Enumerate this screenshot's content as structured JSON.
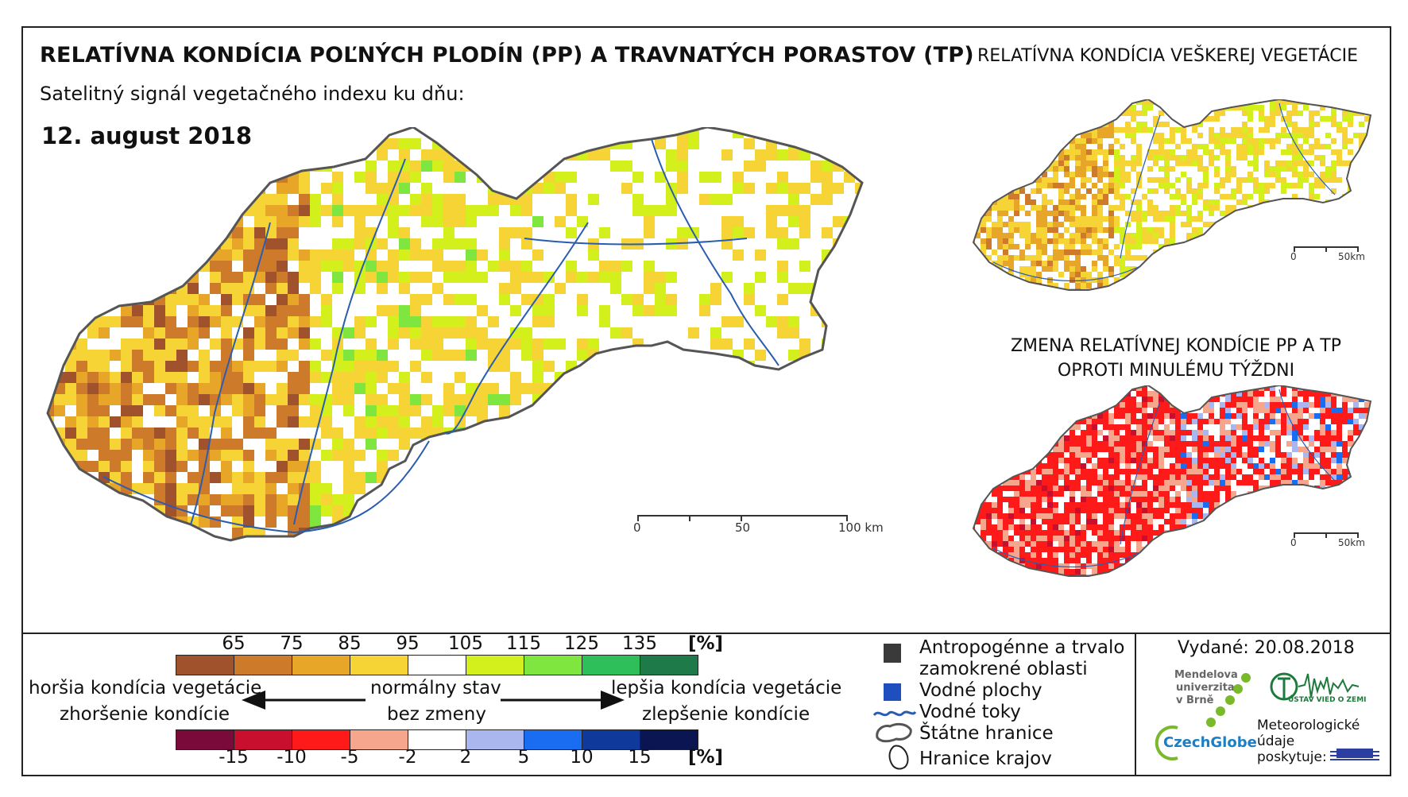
{
  "title": "RELATÍVNA KONDÍCIA POĽNÝCH PLODÍN (PP) A TRAVNATÝCH PORASTOV (TP)",
  "subtitle": "Satelitný signál vegetačného indexu ku dňu:",
  "date": "12. august 2018",
  "side_map_title": "RELATÍVNA KONDÍCIA VEŠKEREJ VEGETÁCIE",
  "change_map_title_line1": "ZMENA RELATÍVNEJ KONDÍCIE PP A TP",
  "change_map_title_line2": "OPROTI MINULÉMU TÝŽDNI",
  "scale_main": {
    "labels": [
      "0",
      "50",
      "100 km"
    ]
  },
  "scale_small": {
    "labels": [
      "0",
      "50km"
    ]
  },
  "condition_legend": {
    "unit": "[%]",
    "ticks": [
      "65",
      "75",
      "85",
      "95",
      "105",
      "115",
      "125",
      "135"
    ],
    "colors": [
      "#a0522d",
      "#cd7a2a",
      "#e8a628",
      "#f6d435",
      "#ffffff",
      "#d4f01c",
      "#7fe640",
      "#2fbf5a",
      "#1f7a4a"
    ]
  },
  "change_legend": {
    "unit": "[%]",
    "ticks": [
      "-15",
      "-10",
      "-5",
      "-2",
      "2",
      "5",
      "10",
      "15"
    ],
    "colors": [
      "#7a0a3a",
      "#c8102e",
      "#ff1a1a",
      "#f7a68e",
      "#ffffff",
      "#a9b7ee",
      "#1a6cf0",
      "#0f3a9c",
      "#0b1552"
    ]
  },
  "legend_text": {
    "worse1": "horšia kondícia vegetácie",
    "worse2": "zhoršenie kondície",
    "normal1": "normálny stav",
    "normal2": "bez zmeny",
    "better1": "lepšia kondícia vegetácie",
    "better2": "zlepšenie kondície"
  },
  "symbols": {
    "anthro": "Antropogénne a trvalo zamokrené oblasti",
    "anthro_line1": "Antropogénne a trvalo",
    "anthro_line2": "zamokrené oblasti",
    "water_bodies": "Vodné plochy",
    "rivers": "Vodné toky",
    "state_border": "Štátne hranice",
    "regions": "Hranice krajov",
    "anthro_color": "#3a3a3a",
    "water_color": "#1f4fbf",
    "river_color": "#2a5db0"
  },
  "issued": "Vydané: 20.08.2018",
  "logos": {
    "mendel_line1": "Mendelova",
    "mendel_line2": "univerzita",
    "mendel_line3": "v Brně",
    "czechglobe": "CzechGlobe",
    "uvz": "ÚSTAV VIED O ZEMI",
    "met_line1": "Meteorologické",
    "met_line2": "údaje",
    "met_line3": "poskytuje:",
    "shmu": "SHMÚ"
  }
}
